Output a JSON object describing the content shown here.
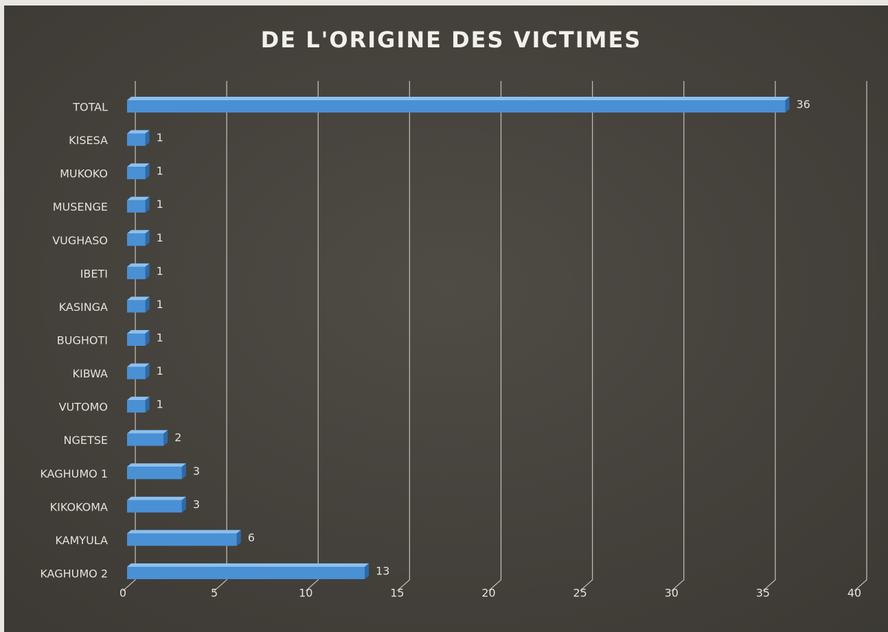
{
  "chart_data": {
    "type": "hbar",
    "title": "DE L'ORIGINE DES VICTIMES",
    "categories": [
      "TOTAL",
      "KISESA",
      "MUKOKO",
      "MUSENGE",
      "VUGHASO",
      "IBETI",
      "KASINGA",
      "BUGHOTI",
      "KIBWA",
      "VUTOMO",
      "NGETSE",
      "KAGHUMO 1",
      "KIKOKOMA",
      "KAMYULA",
      "KAGHUMO 2"
    ],
    "values": [
      36,
      1,
      1,
      1,
      1,
      1,
      1,
      1,
      1,
      1,
      2,
      3,
      3,
      6,
      13
    ],
    "color": "#4a90d4",
    "xlim": [
      0,
      40
    ],
    "xticks": [
      0,
      5,
      10,
      15,
      20,
      25,
      30,
      35,
      40
    ],
    "grid": true
  }
}
